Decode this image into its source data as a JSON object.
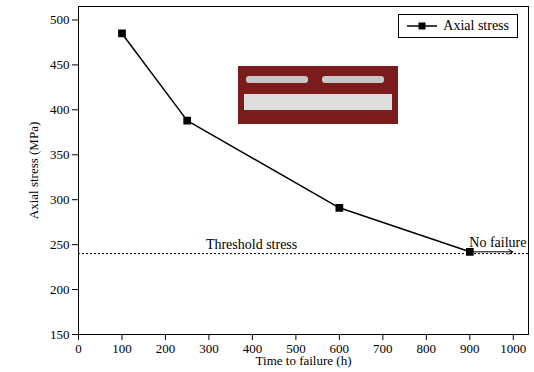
{
  "chart_data": {
    "type": "line",
    "x_label": "Time to failure (h)",
    "y_label": "Axial stress (MPa)",
    "x": [
      100,
      250,
      600,
      900
    ],
    "series": [
      {
        "name": "Axial stress",
        "color": "#000000",
        "marker": "square",
        "line_style": "solid",
        "values": [
          485,
          388,
          291,
          242
        ]
      }
    ],
    "xlim": [
      0,
      1035
    ],
    "xticks": [
      0,
      100,
      200,
      300,
      400,
      500,
      600,
      700,
      800,
      900,
      1000
    ],
    "ylim": [
      150,
      515
    ],
    "yticks": [
      150,
      200,
      250,
      300,
      350,
      400,
      450,
      500
    ],
    "grid": false,
    "legend": "upper right",
    "threshold": {
      "label": "Threshold stress",
      "value": 240,
      "line_style": "dotted"
    },
    "annotations": [
      {
        "text": "No failure"
      }
    ]
  }
}
